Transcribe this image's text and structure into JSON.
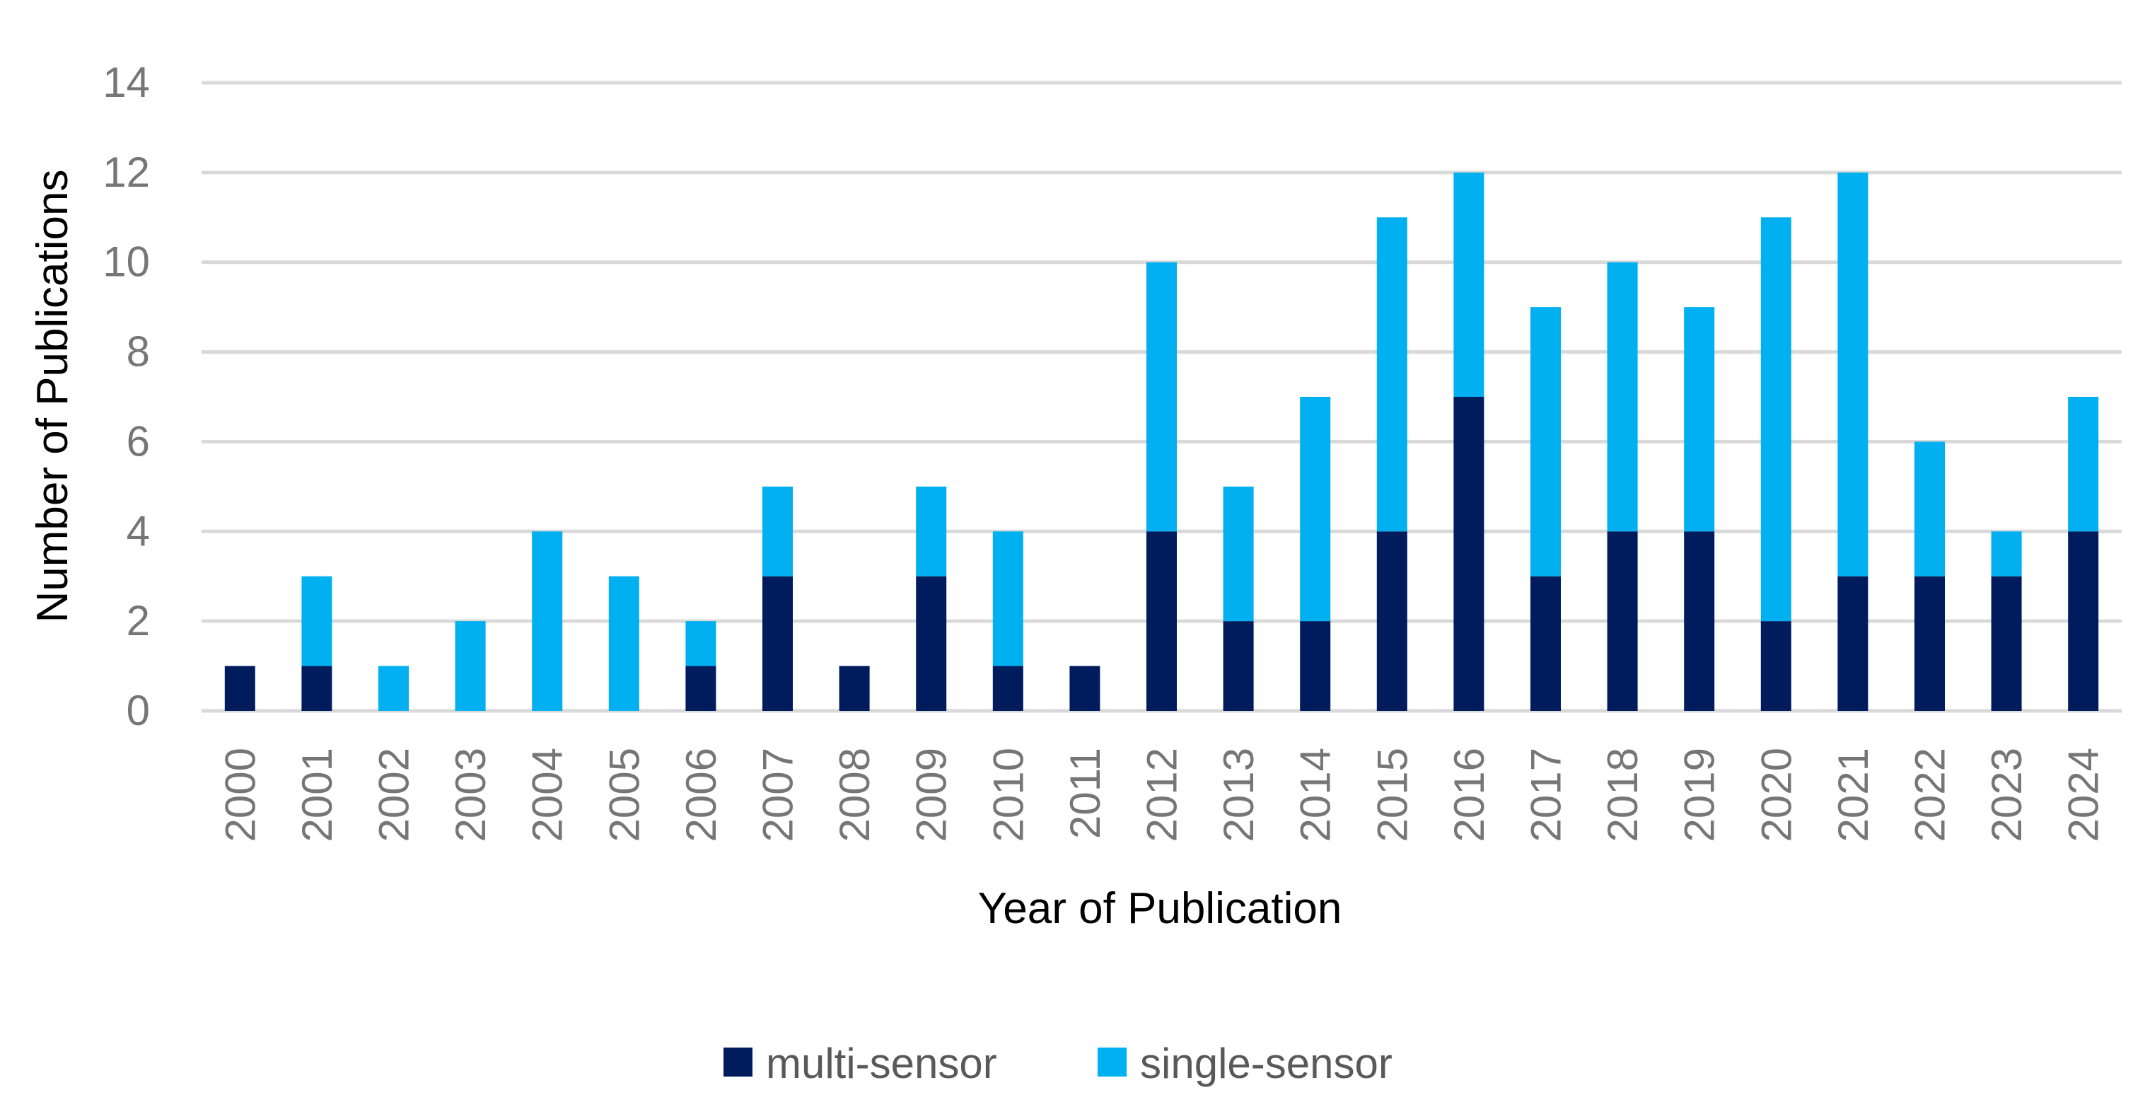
{
  "chart_data": {
    "type": "bar",
    "stacked": true,
    "title": "",
    "xlabel": "Year of Publication",
    "ylabel": "Number of Publications",
    "ylim": [
      0,
      14
    ],
    "yticks": [
      0,
      2,
      4,
      6,
      8,
      10,
      12,
      14
    ],
    "grid": true,
    "legend_position": "bottom",
    "categories": [
      "2000",
      "2001",
      "2002",
      "2003",
      "2004",
      "2005",
      "2006",
      "2007",
      "2008",
      "2009",
      "2010",
      "2011",
      "2012",
      "2013",
      "2014",
      "2015",
      "2016",
      "2017",
      "2018",
      "2019",
      "2020",
      "2021",
      "2022",
      "2023",
      "2024"
    ],
    "series": [
      {
        "name": "multi-sensor",
        "color": "#001c5c",
        "values": [
          1,
          1,
          0,
          0,
          0,
          0,
          1,
          3,
          1,
          3,
          1,
          1,
          4,
          2,
          2,
          4,
          7,
          3,
          4,
          4,
          2,
          3,
          3,
          3,
          4
        ]
      },
      {
        "name": "single-sensor",
        "color": "#00b0f0",
        "values": [
          0,
          2,
          1,
          2,
          4,
          3,
          1,
          2,
          0,
          2,
          3,
          0,
          6,
          3,
          5,
          7,
          5,
          6,
          6,
          5,
          9,
          9,
          3,
          1,
          3
        ]
      }
    ]
  }
}
